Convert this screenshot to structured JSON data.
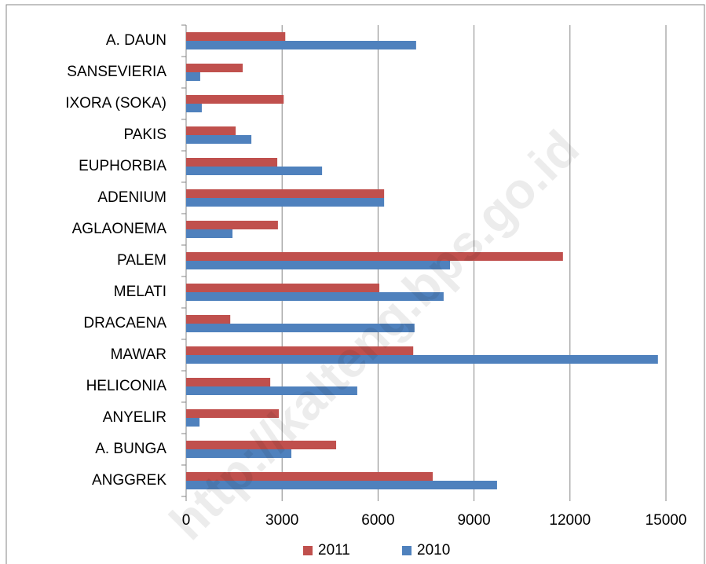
{
  "chart_data": {
    "type": "bar",
    "orientation": "horizontal",
    "categories": [
      "A. DAUN",
      "SANSEVIERIA",
      "IXORA (SOKA)",
      "PAKIS",
      "EUPHORBIA",
      "ADENIUM",
      "AGLAONEMA",
      "PALEM",
      "MELATI",
      "DRACAENA",
      "MAWAR",
      "HELICONIA",
      "ANYELIR",
      "A. BUNGA",
      "ANGGREK"
    ],
    "series": [
      {
        "name": "2011",
        "color": "#c0504d",
        "values": [
          3100,
          1770,
          3050,
          1550,
          2850,
          6190,
          2870,
          11780,
          6040,
          1380,
          7100,
          2630,
          2900,
          4690,
          7710
        ]
      },
      {
        "name": "2010",
        "color": "#4f81bd",
        "values": [
          7190,
          440,
          490,
          2040,
          4250,
          6190,
          1450,
          8250,
          8050,
          7140,
          14750,
          5350,
          420,
          3290,
          9720
        ]
      }
    ],
    "xlim": [
      0,
      15000
    ],
    "xticks": [
      0,
      3000,
      6000,
      9000,
      12000,
      15000
    ],
    "grid": true,
    "legend": "bottom",
    "watermark": "http://kalteng.bps.go.id"
  }
}
